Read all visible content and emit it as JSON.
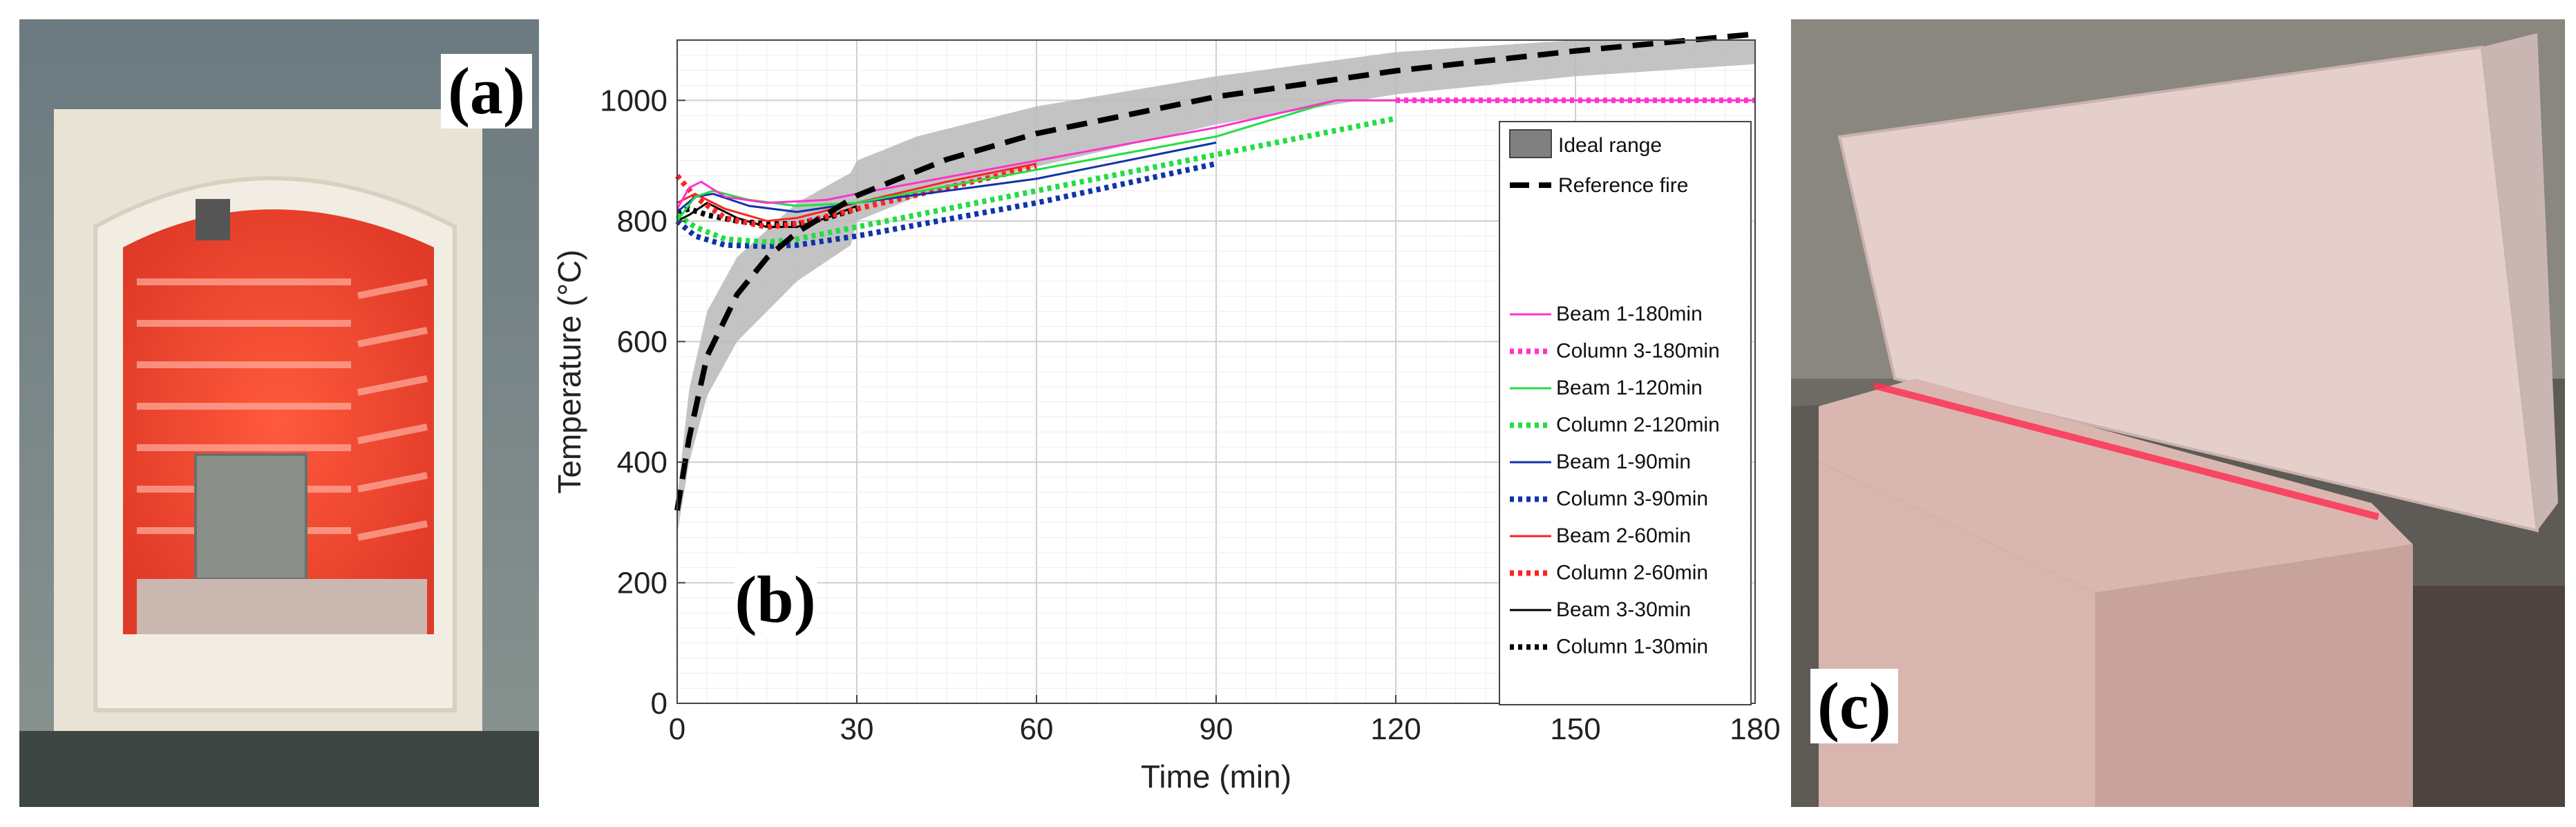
{
  "panels": {
    "a": {
      "label": "(a)"
    },
    "b": {
      "label": "(b)"
    },
    "c": {
      "label": "(c)"
    }
  },
  "colors": {
    "magenta": "#ff33cc",
    "green": "#22dd44",
    "blue": "#1133aa",
    "red": "#ff2222",
    "black": "#000000",
    "ideal_range": "#b8b8b8"
  },
  "chart_data": {
    "type": "line",
    "xlabel": "Time (min)",
    "ylabel": "Temperature (°C)",
    "xlim": [
      0,
      180
    ],
    "ylim": [
      0,
      1100
    ],
    "xticks": [
      0,
      30,
      60,
      90,
      120,
      150,
      180
    ],
    "yticks": [
      0,
      200,
      400,
      600,
      800,
      1000
    ],
    "grid": true,
    "legend_top": {
      "ideal_range": "Ideal range",
      "reference": "Reference fire"
    },
    "ideal_range": {
      "x": [
        0,
        2,
        5,
        10,
        20,
        29,
        30,
        40,
        60,
        90,
        120,
        150,
        180
      ],
      "lower": [
        280,
        400,
        510,
        600,
        700,
        760,
        800,
        840,
        890,
        960,
        1010,
        1040,
        1060
      ],
      "upper": [
        340,
        520,
        650,
        740,
        830,
        880,
        900,
        940,
        990,
        1040,
        1080,
        1100,
        1100
      ]
    },
    "series": [
      {
        "name": "Reference fire",
        "style": "dash-thick",
        "color": "black",
        "x": [
          0,
          2,
          5,
          10,
          15,
          20,
          30,
          45,
          60,
          90,
          120,
          150,
          180
        ],
        "y": [
          320,
          440,
          576,
          678,
          739,
          781,
          842,
          902,
          945,
          1006,
          1049,
          1082,
          1110
        ]
      },
      {
        "name": "Beam 1-180min",
        "style": "solid",
        "color": "magenta",
        "x": [
          0,
          2,
          4,
          8,
          15,
          25,
          30,
          60,
          90,
          110,
          120,
          150,
          180
        ],
        "y": [
          820,
          855,
          865,
          840,
          830,
          835,
          845,
          900,
          955,
          1000,
          1000,
          1000,
          1000
        ]
      },
      {
        "name": "Column 3-180min",
        "style": "dotted",
        "color": "magenta",
        "x": [
          120,
          150,
          180
        ],
        "y": [
          1000,
          1000,
          1000
        ]
      },
      {
        "name": "Beam 1-120min",
        "style": "solid",
        "color": "green",
        "x": [
          0,
          3,
          6,
          12,
          20,
          30,
          60,
          90,
          110,
          120
        ],
        "y": [
          800,
          840,
          850,
          835,
          825,
          830,
          885,
          940,
          1000,
          1000
        ]
      },
      {
        "name": "Column 2-120min",
        "style": "dotted",
        "color": "green",
        "x": [
          0,
          3,
          8,
          15,
          20,
          30,
          60,
          90,
          120
        ],
        "y": [
          810,
          790,
          770,
          765,
          770,
          790,
          850,
          910,
          970
        ]
      },
      {
        "name": "Beam 1-90min",
        "style": "solid",
        "color": "blue",
        "x": [
          0,
          3,
          6,
          12,
          20,
          30,
          60,
          90
        ],
        "y": [
          815,
          840,
          845,
          825,
          815,
          830,
          870,
          930
        ]
      },
      {
        "name": "Column 3-90min",
        "style": "dotted",
        "color": "blue",
        "x": [
          0,
          3,
          8,
          15,
          20,
          30,
          60,
          90
        ],
        "y": [
          800,
          775,
          760,
          758,
          760,
          775,
          830,
          895
        ]
      },
      {
        "name": "Beam 2-60min",
        "style": "solid",
        "color": "red",
        "x": [
          0,
          3,
          8,
          15,
          20,
          30,
          45,
          60
        ],
        "y": [
          830,
          845,
          820,
          800,
          805,
          830,
          865,
          895
        ]
      },
      {
        "name": "Column 2-60min",
        "style": "dotted",
        "color": "red",
        "x": [
          0,
          3,
          8,
          15,
          20,
          30,
          45,
          60
        ],
        "y": [
          875,
          840,
          805,
          790,
          795,
          820,
          855,
          890
        ]
      },
      {
        "name": "Beam 3-30min",
        "style": "solid",
        "color": "black",
        "x": [
          0,
          2,
          5,
          10,
          15,
          20,
          25,
          30
        ],
        "y": [
          800,
          810,
          830,
          805,
          790,
          790,
          805,
          825
        ]
      },
      {
        "name": "Column 1-30min",
        "style": "dotted",
        "color": "black",
        "x": [
          0,
          2,
          5,
          10,
          15,
          20,
          25,
          30
        ],
        "y": [
          815,
          820,
          810,
          800,
          795,
          795,
          805,
          820
        ]
      }
    ],
    "legend_order": [
      "Beam 1-180min",
      "Column 3-180min",
      "Beam 1-120min",
      "Column 2-120min",
      "Beam 1-90min",
      "Column 3-90min",
      "Beam 2-60min",
      "Column 2-60min",
      "Beam 3-30min",
      "Column 1-30min"
    ]
  }
}
